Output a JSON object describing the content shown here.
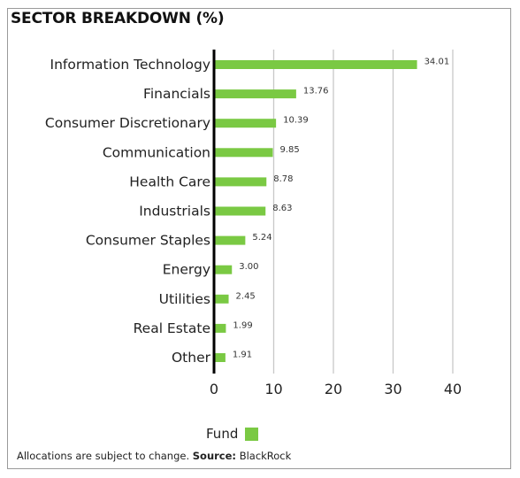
{
  "title": "SECTOR BREAKDOWN (%)",
  "legend": {
    "label": "Fund"
  },
  "footnote": {
    "text": "Allocations are subject to change.",
    "source_label": "Source:",
    "source_value": "BlackRock"
  },
  "colors": {
    "bar": "#7ac943",
    "grid": "#c8c8c8",
    "axis": "#000000"
  },
  "chart_data": {
    "type": "bar",
    "orientation": "horizontal",
    "categories": [
      "Information Technology",
      "Financials",
      "Consumer Discretionary",
      "Communication",
      "Health Care",
      "Industrials",
      "Consumer Staples",
      "Energy",
      "Utilities",
      "Real Estate",
      "Other"
    ],
    "series": [
      {
        "name": "Fund",
        "values": [
          34.01,
          13.76,
          10.39,
          9.85,
          8.78,
          8.63,
          5.24,
          3.0,
          2.45,
          1.99,
          1.91
        ]
      }
    ],
    "value_labels": [
      "34.01",
      "13.76",
      "10.39",
      "9.85",
      "8.78",
      "8.63",
      "5.24",
      "3.00",
      "2.45",
      "1.99",
      "1.91"
    ],
    "xlim": [
      0,
      40
    ],
    "xticks": [
      0,
      10,
      20,
      30,
      40
    ],
    "grid": true,
    "legend_position": "bottom"
  }
}
